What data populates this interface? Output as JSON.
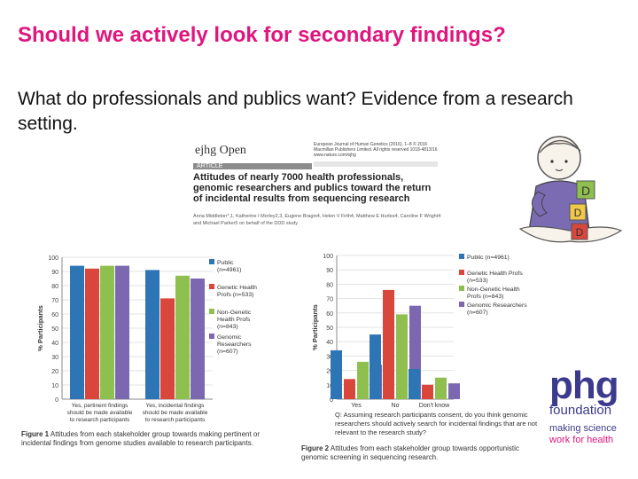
{
  "slide": {
    "title": "Should we actively look for secondary findings?",
    "subtitle": "What do professionals and publics want? Evidence from a research setting."
  },
  "article": {
    "journal_logo": "ejhg Open",
    "journal_meta": "European Journal of Human Genetics (2016), 1–8 © 2016 Macmillan Publishers Limited. All rights reserved 1018-4813/16 www.nature.com/ejhg",
    "section_tag": "ARTICLE",
    "title": "Attitudes of nearly 7000 health professionals, genomic researchers and publics toward the return of incidental results from sequencing research",
    "authors": "Anna Middleton*,1, Katherine I Morley2,3, Eugene Bragin4, Helen V Firth4, Matthew E Hurles4, Caroline F Wright4 and Michael Parker5 on behalf of the DDD study"
  },
  "logo": {
    "big": "phg",
    "foundation": "foundation",
    "tag1": "making science",
    "tag2": "work for health"
  },
  "colors": {
    "title": "#e0157d",
    "public": "#2e75b6",
    "genetic": "#d9463c",
    "nongenetic": "#8fc04f",
    "researchers": "#7c67b1"
  },
  "chart_data": [
    {
      "type": "bar",
      "ylabel": "% Participants",
      "ylim": [
        0,
        100
      ],
      "yticks": [
        0,
        10,
        20,
        30,
        40,
        50,
        60,
        70,
        80,
        90,
        100
      ],
      "categories": [
        "Yes, pertinent findings should be made available to research participants",
        "Yes, incidental findings should be made available to research participants"
      ],
      "series": [
        {
          "name": "Public (n=4961)",
          "values": [
            94,
            91
          ]
        },
        {
          "name": "Genetic Health Profs (n=533)",
          "values": [
            92,
            71
          ]
        },
        {
          "name": "Non-Genetic Health Profs (n=843)",
          "values": [
            94,
            87
          ]
        },
        {
          "name": "Genomic Researchers (n=607)",
          "values": [
            94,
            85
          ]
        }
      ],
      "caption_label": "Figure 1",
      "caption": "Attitudes from each stakeholder group towards making pertinent or incidental findings from genome studies available to research participants."
    },
    {
      "type": "bar",
      "ylabel": "% Participants",
      "ylim": [
        0,
        100
      ],
      "yticks": [
        0,
        10,
        20,
        30,
        40,
        50,
        60,
        70,
        80,
        90,
        100
      ],
      "categories": [
        "Yes",
        "No",
        "Don't know"
      ],
      "series": [
        {
          "name": "Public (n=4961)",
          "values": [
            34,
            45,
            21
          ]
        },
        {
          "name": "Genetic Health Profs (n=533)",
          "values": [
            14,
            76,
            10
          ]
        },
        {
          "name": "Non-Genetic Health Profs (n=843)",
          "values": [
            26,
            59,
            15
          ]
        },
        {
          "name": "Genomic Researchers (n=607)",
          "values": [
            24,
            65,
            11
          ]
        }
      ],
      "xnote": "Q: Assuming research participants consent, do you think genomic researchers should actively search for incidental findings that are not relevant to the research study?",
      "caption_label": "Figure 2",
      "caption": "Attitudes from each stakeholder group towards opportunistic genomic screening in sequencing research."
    }
  ]
}
